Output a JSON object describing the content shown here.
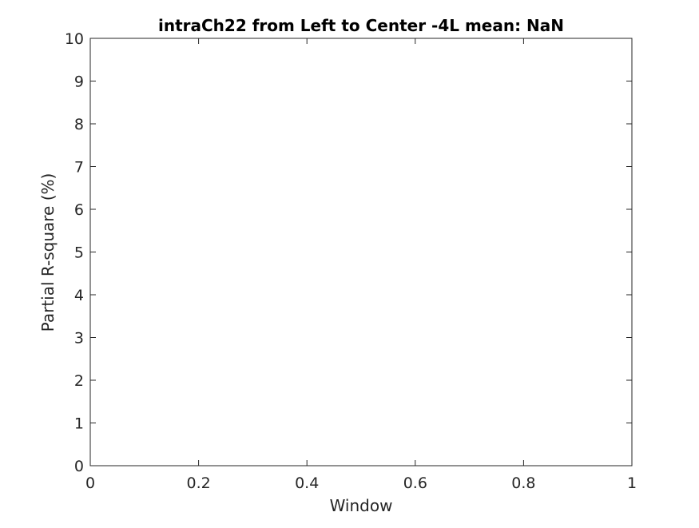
{
  "chart_data": {
    "type": "line",
    "title": "intraCh22 from Left to Center -4L mean: NaN",
    "xlabel": "Window",
    "ylabel": "Partial R-square (%)",
    "xlim": [
      0,
      1
    ],
    "ylim": [
      0,
      10
    ],
    "x_ticks": [
      0,
      0.2,
      0.4,
      0.6,
      0.8,
      1
    ],
    "y_ticks": [
      0,
      1,
      2,
      3,
      4,
      5,
      6,
      7,
      8,
      9,
      10
    ],
    "x_tick_labels": [
      "0",
      "0.2",
      "0.4",
      "0.6",
      "0.8",
      "1"
    ],
    "y_tick_labels": [
      "0",
      "1",
      "2",
      "3",
      "4",
      "5",
      "6",
      "7",
      "8",
      "9",
      "10"
    ],
    "series": [],
    "grid": false,
    "box": true
  }
}
